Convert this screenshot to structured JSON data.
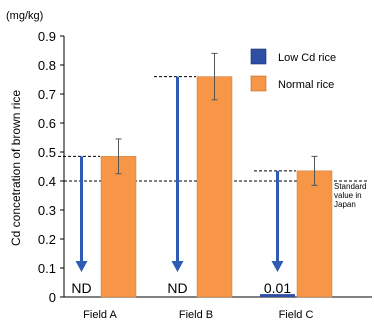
{
  "chart_data": {
    "type": "bar",
    "unit_label": "(mg/kg)",
    "ylabel": "Cd concetration of brown rice",
    "ylim": [
      0,
      0.9
    ],
    "yticks": [
      "0",
      "0.1",
      "0.2",
      "0.3",
      "0.4",
      "0.5",
      "0.6",
      "0.7",
      "0.8",
      "0.9"
    ],
    "categories": [
      "Field A",
      "Field B",
      "Field C"
    ],
    "series": [
      {
        "name": "Low Cd rice",
        "color": "#2e4fa3",
        "values": [
          0,
          0,
          0.01
        ],
        "value_labels": [
          "ND",
          "ND",
          "0.01"
        ]
      },
      {
        "name": "Normal rice",
        "color": "#f79646",
        "values": [
          0.485,
          0.76,
          0.435
        ],
        "error": [
          0.06,
          0.08,
          0.05
        ]
      }
    ],
    "reference_line": {
      "value": 0.4,
      "label_lines": [
        "Standard",
        "value in",
        "Japan"
      ]
    },
    "reduction_arrows": {
      "color": "#2e5bb5",
      "from": [
        0.485,
        0.76,
        0.435
      ]
    },
    "legend_position": "top-right",
    "grid": false
  }
}
